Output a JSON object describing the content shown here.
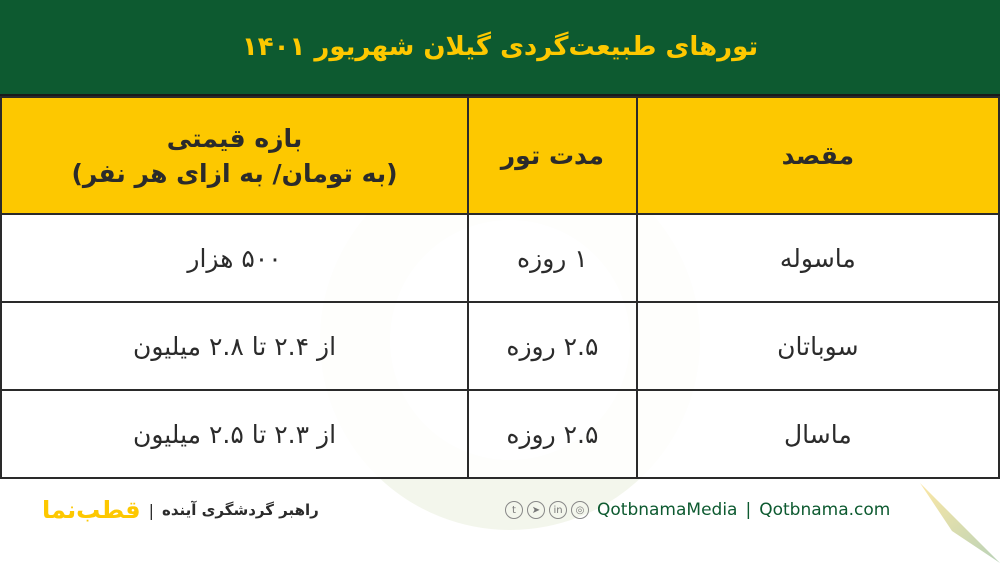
{
  "title": "تورهای طبیعت‌گردی گیلان شهریور ۱۴۰۱",
  "headers": {
    "destination": "مقصد",
    "duration": "مدت تور",
    "price": "بازه قیمتی",
    "price_unit": "(به تومان/ به ازای هر نفر)"
  },
  "rows": [
    {
      "destination": "ماسوله",
      "duration": "۱ روزه",
      "price": "۵۰۰ هزار"
    },
    {
      "destination": "سوباتان",
      "duration": "۲.۵ روزه",
      "price": "از ۲.۴ تا ۲.۸ میلیون"
    },
    {
      "destination": "ماسال",
      "duration": "۲.۵ روزه",
      "price": "از ۲.۳ تا ۲.۵ میلیون"
    }
  ],
  "footer": {
    "website": "Qotbnama.com",
    "separator": "|",
    "social_handle": "QotbnamaMedia",
    "tagline": "راهبر گردشگری آینده",
    "logo_text": "قطب‌نما",
    "social_icons": [
      "instagram-icon",
      "linkedin-icon",
      "telegram-icon",
      "twitter-icon"
    ]
  },
  "colors": {
    "green": "#0d5a30",
    "yellow": "#fdc800"
  }
}
